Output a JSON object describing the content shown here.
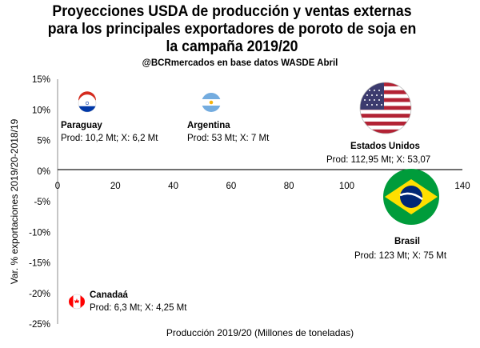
{
  "chart_data": {
    "type": "scatter",
    "title": "Proyecciones USDA de producción y ventas externas para los principales exportadores de poroto de soja en la campaña 2019/20",
    "subtitle": "@BCRmercados en base datos WASDE Abril",
    "xlabel": "Producción 2019/20 (Millones de toneladas)",
    "ylabel": "Var. % exportaciones 2019/20-2018/19",
    "xlim": [
      0,
      140
    ],
    "ylim": [
      -25,
      15
    ],
    "x_ticks": [
      "0",
      "20",
      "40",
      "60",
      "80",
      "100",
      "120",
      "140"
    ],
    "y_ticks": [
      "15%",
      "10%",
      "5%",
      "0%",
      "-5%",
      "-10%",
      "-15%",
      "-20%",
      "-25%"
    ],
    "grid": false,
    "points": [
      {
        "country": "Paraguay",
        "flag": "paraguay-flag",
        "x": 10.2,
        "y": 11.5,
        "line": "Prod: 10,2 Mt; X: 6,2 Mt"
      },
      {
        "country": "Argentina",
        "flag": "argentina-flag",
        "x": 53,
        "y": 11.5,
        "line": "Prod: 53 Mt; X: 7 Mt"
      },
      {
        "country": "Estados Unidos",
        "flag": "usa-flag",
        "x": 112.95,
        "y": 10.5,
        "line": "Prod: 112,95 Mt; X: 53,07"
      },
      {
        "country": "Brasil",
        "flag": "brazil-flag",
        "x": 123,
        "y": -4.5,
        "line": "Prod: 123 Mt; X: 75 Mt"
      },
      {
        "country": "Canadaá",
        "flag": "canada-flag",
        "x": 6.3,
        "y": -21.5,
        "line": "Prod: 6,3 Mt; X: 4,25 Mt"
      }
    ]
  },
  "colors": {
    "axis": "#8c8c8c",
    "paraguay_red": "#d52b1e",
    "paraguay_blue": "#0038a8",
    "argentina_blue": "#74acdf",
    "usa_red": "#b22234",
    "usa_blue": "#3c3b6e",
    "brazil_green": "#009c3b",
    "brazil_yellow": "#ffdf00",
    "brazil_blue": "#002776",
    "canada_red": "#ff0000"
  }
}
